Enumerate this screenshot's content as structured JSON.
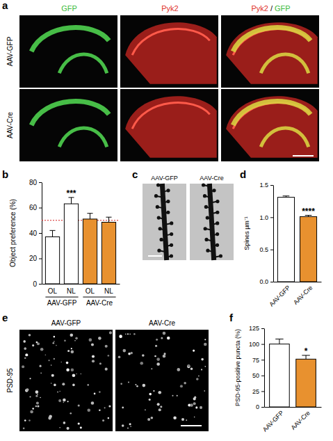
{
  "chart_data": [
    {
      "type": "bar",
      "panel": "b",
      "y_label": "Object preference (%)",
      "categories": [
        "OL",
        "NL",
        "OL",
        "NL"
      ],
      "groups": [
        "AAV-GFP",
        "AAV-GFP",
        "AAV-Cre",
        "AAV-Cre"
      ],
      "values": [
        37,
        63,
        51,
        48.5
      ],
      "errors": [
        5,
        5,
        4.5,
        4
      ],
      "colors": [
        "#ffffff",
        "#ffffff",
        "#e8912f",
        "#e8912f"
      ],
      "ylim": [
        0,
        80
      ],
      "yticks": [
        0,
        20,
        40,
        60,
        80
      ],
      "hline": 50,
      "annotations": [
        {
          "text": "***",
          "category": 1
        }
      ]
    },
    {
      "type": "bar",
      "panel": "d",
      "y_label": "Spines µm⁻¹",
      "categories": [
        "AAV-GFP",
        "AAV-Cre"
      ],
      "values": [
        1.31,
        1.01
      ],
      "errors": [
        0.02,
        0.02
      ],
      "colors": [
        "#ffffff",
        "#e8912f"
      ],
      "ylim": [
        0,
        1.5
      ],
      "yticks": [
        {
          "value": 0,
          "label": "0.0"
        },
        {
          "value": 0.5,
          "label": "0.5"
        },
        {
          "value": 1,
          "label": "1.0"
        },
        {
          "value": 1.5,
          "label": "1.5"
        }
      ],
      "annotations": [
        {
          "text": "****",
          "category": 1
        }
      ]
    },
    {
      "type": "bar",
      "panel": "f",
      "y_label": "PSD-95-positive puncta (%)",
      "categories": [
        "AAV-GFP",
        "AAV-Cre"
      ],
      "values": [
        100,
        76
      ],
      "errors": [
        8,
        6
      ],
      "colors": [
        "#ffffff",
        "#e8912f"
      ],
      "ylim": [
        0,
        125
      ],
      "yticks": [
        0,
        25,
        50,
        75,
        100,
        125
      ],
      "annotations": [
        {
          "text": "*",
          "category": 1
        }
      ]
    }
  ],
  "images": [
    {
      "panel": "a",
      "columns": [
        {
          "parts": [
            "GFP"
          ],
          "colors": [
            "#3dbb3d"
          ]
        },
        {
          "parts": [
            "Pyk2"
          ],
          "colors": [
            "#e0302a"
          ]
        },
        {
          "parts": [
            "Pyk2",
            "/",
            "GFP"
          ],
          "colors": [
            "#e0302a",
            "#000000",
            "#3dbb3d"
          ]
        }
      ],
      "rows": [
        "AAV-GFP",
        "AAV-Cre"
      ]
    },
    {
      "panel": "c",
      "columns": [
        "AAV-GFP",
        "AAV-Cre"
      ]
    },
    {
      "panel": "e",
      "columns": [
        "AAV-GFP",
        "AAV-Cre"
      ],
      "rows": [
        "PSD-95"
      ]
    }
  ]
}
